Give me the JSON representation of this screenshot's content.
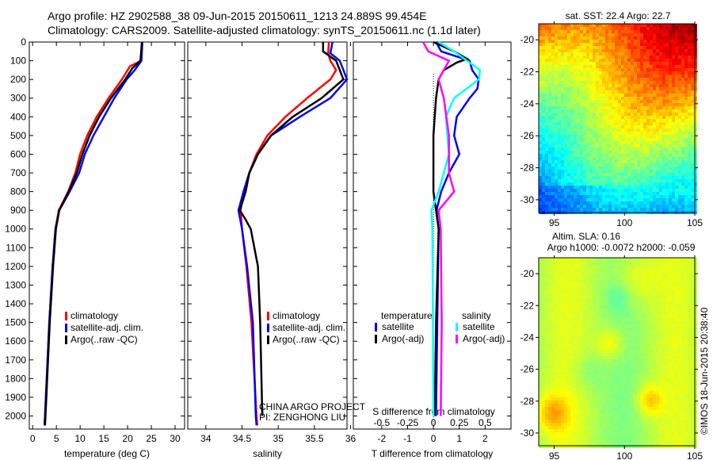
{
  "title_line1": "Argo profile: HZ 2902588_38 09-Jun-2015 20150611_1213 24.889S 99.454E",
  "title_line2": "Climatology: CARS2009. Satellite-adjusted climatology: synTS_20150611.nc (1.1d later)",
  "credit": "©IMOS 18-Jun-2015 20:38:40",
  "project_line1": "CHINA ARGO PROJECT",
  "project_line2": "PI: ZENGHONG LIU",
  "colors": {
    "climatology": "#ff0000",
    "satellite": "#0000ff",
    "argo": "#000000",
    "sal_satellite": "#00ffff",
    "sal_argo": "#ff00ff"
  },
  "chart_data": [
    {
      "type": "line",
      "name": "temperature",
      "xlabel": "temperature (deg C)",
      "ylabel": "depth",
      "xlim": [
        -0.7,
        32
      ],
      "ylim": [
        2070,
        0
      ],
      "xticks": [
        0,
        5,
        10,
        15,
        20,
        25,
        30
      ],
      "yticks": [
        0,
        100,
        200,
        300,
        400,
        500,
        600,
        700,
        800,
        900,
        1000,
        1100,
        1200,
        1300,
        1400,
        1500,
        1600,
        1700,
        1800,
        1900,
        2000
      ],
      "legend": [
        "climatology",
        "satellite-adj. clim.",
        "Argo(..raw -QC)"
      ],
      "series": [
        {
          "name": "climatology",
          "color": "#ff0000",
          "depth": [
            0,
            100,
            130,
            200,
            300,
            400,
            500,
            600,
            700,
            800,
            900,
            1000,
            1200,
            1500,
            2000,
            2050
          ],
          "values": [
            23,
            22.8,
            20.5,
            18.8,
            16,
            13.5,
            11.5,
            10,
            9,
            7.5,
            5.5,
            4.8,
            4.2,
            3.5,
            2.6,
            2.5
          ]
        },
        {
          "name": "satellite-adj. clim.",
          "color": "#0000ff",
          "depth": [
            0,
            100,
            150,
            200,
            300,
            400,
            500,
            600,
            700,
            800,
            900,
            1000,
            1200,
            1500,
            2000,
            2050
          ],
          "values": [
            23.1,
            22.9,
            21.5,
            19.8,
            17.2,
            15,
            12.8,
            11,
            9.8,
            7.8,
            5.6,
            4.8,
            4.2,
            3.5,
            2.6,
            2.5
          ]
        },
        {
          "name": "Argo(..raw -QC)",
          "color": "#000000",
          "depth": [
            0,
            100,
            140,
            200,
            300,
            400,
            500,
            600,
            700,
            800,
            900,
            1000,
            1200,
            1500,
            2000,
            2050
          ],
          "values": [
            23,
            22.7,
            21,
            19.5,
            16.5,
            14,
            12,
            10.5,
            9.3,
            7.6,
            5.6,
            4.9,
            4.3,
            3.6,
            2.7,
            2.6
          ]
        }
      ]
    },
    {
      "type": "line",
      "name": "salinity",
      "xlabel": "salinity",
      "xlim": [
        33.75,
        35.95
      ],
      "ylim": [
        2070,
        0
      ],
      "xticks": [
        34,
        34.5,
        35,
        35.5,
        36
      ],
      "legend": [
        "climatology",
        "satellite-adj. clim.",
        "Argo(..raw -QC)"
      ],
      "series": [
        {
          "name": "climatology",
          "color": "#ff0000",
          "depth": [
            0,
            60,
            100,
            150,
            200,
            300,
            400,
            500,
            600,
            700,
            800,
            900,
            1000,
            1200,
            1500,
            2000,
            2050
          ],
          "values": [
            35.7,
            35.69,
            35.72,
            35.8,
            35.72,
            35.4,
            35.1,
            34.85,
            34.7,
            34.6,
            34.52,
            34.48,
            34.5,
            34.56,
            34.63,
            34.7,
            34.71
          ]
        },
        {
          "name": "satellite-adj. clim.",
          "color": "#0000ff",
          "depth": [
            0,
            60,
            100,
            200,
            300,
            400,
            500,
            600,
            700,
            800,
            900,
            1000,
            1200,
            1500,
            2000,
            2050
          ],
          "values": [
            35.75,
            35.72,
            35.85,
            35.95,
            35.72,
            35.3,
            34.9,
            34.72,
            34.6,
            34.52,
            34.45,
            34.5,
            34.57,
            34.65,
            34.69,
            34.7
          ]
        },
        {
          "name": "Argo(..raw -QC)",
          "color": "#000000",
          "depth": [
            0,
            50,
            100,
            200,
            300,
            400,
            500,
            600,
            700,
            800,
            900,
            950,
            1000,
            1200,
            1500,
            2000,
            1950
          ],
          "values": [
            35.62,
            35.62,
            35.8,
            35.9,
            35.6,
            35.2,
            34.9,
            34.72,
            34.6,
            34.55,
            34.47,
            34.55,
            34.62,
            34.72,
            34.75,
            34.78,
            34.78
          ]
        }
      ]
    },
    {
      "type": "line",
      "name": "difference",
      "xlabel": "T difference from climatology",
      "x2label": "S difference from climatology",
      "xlim": [
        -3.1,
        3
      ],
      "x2lim": [
        -0.775,
        0.75
      ],
      "ylim": [
        2070,
        0
      ],
      "xticks": [
        -2,
        -1,
        0,
        1,
        2
      ],
      "x2ticks": [
        -0.5,
        -0.25,
        0,
        0.25,
        0.5
      ],
      "legend_headers": [
        "temperature",
        "salinity"
      ],
      "legend": [
        "satellite",
        "Argo(-adj)",
        "satellite",
        "Argo(-adj)"
      ],
      "series": [
        {
          "name": "temperature satellite",
          "axis": "T",
          "color": "#0000ff",
          "depth": [
            0,
            50,
            100,
            150,
            200,
            250,
            300,
            400,
            500,
            600,
            700,
            800,
            900,
            1000,
            1500,
            2000
          ],
          "values": [
            0.1,
            0.3,
            1.4,
            1.5,
            1.75,
            1.7,
            1.4,
            0.9,
            0.8,
            1,
            0.6,
            0.3,
            0.12,
            0.2,
            0.15,
            0.1
          ]
        },
        {
          "name": "temperature Argo(-adj)",
          "axis": "T",
          "color": "#000000",
          "depth": [
            0,
            50,
            90,
            110,
            150,
            200,
            300,
            500,
            800,
            900,
            1000,
            1500,
            2000
          ],
          "values": [
            0,
            0.8,
            1.3,
            0.9,
            0.4,
            0.2,
            0.1,
            0,
            0,
            0.1,
            0.2,
            0.1,
            0.05
          ]
        },
        {
          "name": "salinity satellite",
          "axis": "S",
          "color": "#00ffff",
          "depth": [
            0,
            50,
            150,
            200,
            300,
            400,
            600,
            800,
            900,
            1000,
            2000
          ],
          "values": [
            0.05,
            0.2,
            0.45,
            0.44,
            0.2,
            0.12,
            0.15,
            0.05,
            -0.02,
            -0.01,
            0
          ]
        },
        {
          "name": "salinity Argo(-adj)",
          "axis": "S",
          "color": "#ff00ff",
          "depth": [
            0,
            50,
            100,
            200,
            300,
            500,
            700,
            800,
            900,
            1000,
            1500,
            2000
          ],
          "values": [
            -0.1,
            -0.05,
            0.15,
            0.05,
            0.1,
            0.15,
            0.15,
            0.2,
            0.05,
            0.07,
            0.08,
            0.07
          ]
        }
      ]
    },
    {
      "type": "heatmap",
      "name": "sst-map",
      "title": "sat. SST: 22.4 Argo: 22.7",
      "xticks": [
        95,
        100,
        105
      ],
      "yticks": [
        -20,
        -22,
        -24,
        -26,
        -28,
        -30
      ],
      "xlim": [
        93.9,
        105
      ],
      "ylim": [
        -30.8,
        -19
      ]
    },
    {
      "type": "heatmap",
      "name": "sla-map",
      "title1": "Altim. SLA: 0.16",
      "title2": "Argo h1000: -0.0072 h2000: -0.059",
      "xticks": [
        95,
        100,
        105
      ],
      "yticks": [
        -20,
        -22,
        -24,
        -26,
        -28,
        -30
      ],
      "xlim": [
        93.9,
        105
      ],
      "ylim": [
        -30.8,
        -19
      ]
    }
  ]
}
